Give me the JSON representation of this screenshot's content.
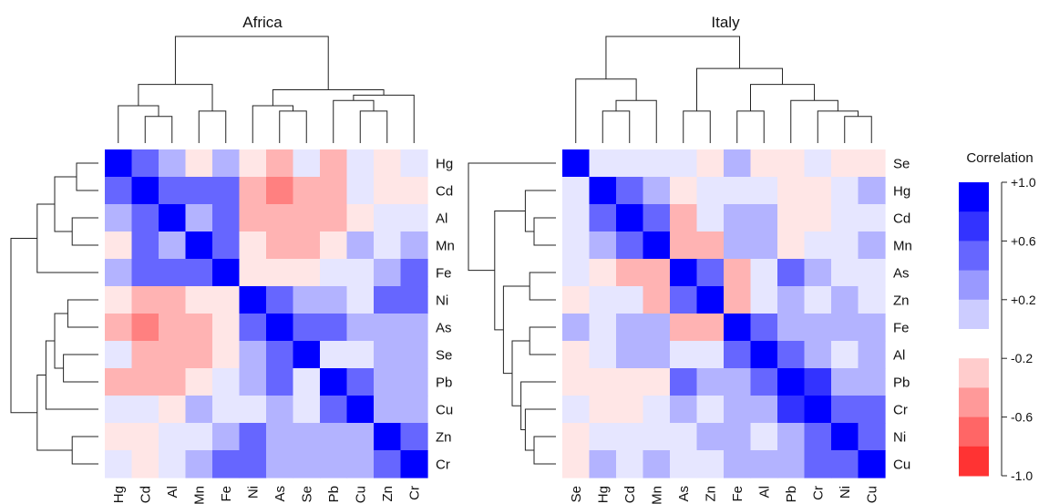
{
  "chart_data": [
    {
      "type": "heatmap",
      "title": "Africa",
      "rows": [
        "Hg",
        "Cd",
        "Al",
        "Mn",
        "Fe",
        "Ni",
        "As",
        "Se",
        "Pb",
        "Cu",
        "Zn",
        "Cr"
      ],
      "cols": [
        "Hg",
        "Cd",
        "Al",
        "Mn",
        "Fe",
        "Ni",
        "As",
        "Se",
        "Pb",
        "Cu",
        "Zn",
        "Cr"
      ],
      "values": [
        [
          1.0,
          0.6,
          0.3,
          -0.1,
          0.3,
          -0.1,
          -0.3,
          0.1,
          -0.3,
          0.1,
          -0.1,
          0.1
        ],
        [
          0.6,
          1.0,
          0.6,
          0.6,
          0.6,
          -0.3,
          -0.5,
          -0.3,
          -0.3,
          0.1,
          -0.1,
          -0.1
        ],
        [
          0.3,
          0.6,
          1.0,
          0.3,
          0.6,
          -0.3,
          -0.3,
          -0.3,
          -0.3,
          -0.1,
          0.1,
          0.1
        ],
        [
          -0.1,
          0.6,
          0.3,
          1.0,
          0.6,
          -0.1,
          -0.3,
          -0.3,
          -0.1,
          0.3,
          0.1,
          0.3
        ],
        [
          0.3,
          0.6,
          0.6,
          0.6,
          1.0,
          -0.1,
          -0.1,
          -0.1,
          0.1,
          0.1,
          0.3,
          0.6
        ],
        [
          -0.1,
          -0.3,
          -0.3,
          -0.1,
          -0.1,
          1.0,
          0.6,
          0.3,
          0.3,
          0.1,
          0.6,
          0.6
        ],
        [
          -0.3,
          -0.5,
          -0.3,
          -0.3,
          -0.1,
          0.6,
          1.0,
          0.6,
          0.6,
          0.3,
          0.3,
          0.3
        ],
        [
          0.1,
          -0.3,
          -0.3,
          -0.3,
          -0.1,
          0.3,
          0.6,
          1.0,
          0.1,
          0.1,
          0.3,
          0.3
        ],
        [
          -0.3,
          -0.3,
          -0.3,
          -0.1,
          0.1,
          0.3,
          0.6,
          0.1,
          1.0,
          0.6,
          0.3,
          0.3
        ],
        [
          0.1,
          0.1,
          -0.1,
          0.3,
          0.1,
          0.1,
          0.3,
          0.1,
          0.6,
          1.0,
          0.3,
          0.3
        ],
        [
          -0.1,
          -0.1,
          0.1,
          0.1,
          0.3,
          0.6,
          0.3,
          0.3,
          0.3,
          0.3,
          1.0,
          0.6
        ],
        [
          0.1,
          -0.1,
          0.1,
          0.3,
          0.6,
          0.6,
          0.3,
          0.3,
          0.3,
          0.3,
          0.6,
          1.0
        ]
      ],
      "row_dendrogram": {
        "merges": [
          [
            0,
            1,
            0.25
          ],
          [
            2,
            3,
            0.3
          ],
          [
            12,
            13,
            0.5
          ],
          [
            14,
            4,
            0.7
          ],
          [
            5,
            6,
            0.35
          ],
          [
            7,
            8,
            0.4
          ],
          [
            16,
            17,
            0.5
          ],
          [
            10,
            11,
            0.3
          ],
          [
            18,
            9,
            0.6
          ],
          [
            20,
            19,
            0.7
          ],
          [
            15,
            21,
            1.0
          ]
        ]
      },
      "col_dendrogram": {
        "merges": [
          [
            1,
            2,
            0.25
          ],
          [
            0,
            12,
            0.35
          ],
          [
            3,
            4,
            0.3
          ],
          [
            13,
            14,
            0.55
          ],
          [
            6,
            7,
            0.3
          ],
          [
            5,
            16,
            0.35
          ],
          [
            9,
            10,
            0.3
          ],
          [
            8,
            18,
            0.4
          ],
          [
            19,
            11,
            0.45
          ],
          [
            17,
            20,
            0.5
          ],
          [
            15,
            21,
            1.0
          ]
        ]
      }
    },
    {
      "type": "heatmap",
      "title": "Italy",
      "rows": [
        "Se",
        "Hg",
        "Cd",
        "Mn",
        "As",
        "Zn",
        "Fe",
        "Al",
        "Pb",
        "Cr",
        "Ni",
        "Cu"
      ],
      "cols": [
        "Se",
        "Hg",
        "Cd",
        "Mn",
        "As",
        "Zn",
        "Fe",
        "Al",
        "Pb",
        "Cr",
        "Ni",
        "Cu"
      ],
      "values": [
        [
          1.0,
          0.1,
          0.1,
          0.1,
          0.1,
          -0.1,
          0.3,
          -0.1,
          -0.1,
          0.1,
          -0.1,
          -0.1
        ],
        [
          0.1,
          1.0,
          0.6,
          0.3,
          -0.1,
          0.1,
          0.1,
          0.1,
          -0.1,
          -0.1,
          0.1,
          0.3
        ],
        [
          0.1,
          0.6,
          1.0,
          0.6,
          -0.3,
          0.1,
          0.3,
          0.3,
          -0.1,
          -0.1,
          0.1,
          0.1
        ],
        [
          0.1,
          0.3,
          0.6,
          1.0,
          -0.3,
          -0.3,
          0.3,
          0.3,
          -0.1,
          0.1,
          0.1,
          0.3
        ],
        [
          0.1,
          -0.1,
          -0.3,
          -0.3,
          1.0,
          0.6,
          -0.3,
          0.1,
          0.6,
          0.3,
          0.1,
          0.1
        ],
        [
          -0.1,
          0.1,
          0.1,
          -0.3,
          0.6,
          1.0,
          -0.3,
          0.1,
          0.3,
          0.1,
          0.3,
          0.1
        ],
        [
          0.3,
          0.1,
          0.3,
          0.3,
          -0.3,
          -0.3,
          1.0,
          0.6,
          0.3,
          0.3,
          0.3,
          0.3
        ],
        [
          -0.1,
          0.1,
          0.3,
          0.3,
          0.1,
          0.1,
          0.6,
          1.0,
          0.6,
          0.3,
          0.1,
          0.3
        ],
        [
          -0.1,
          -0.1,
          -0.1,
          -0.1,
          0.6,
          0.3,
          0.3,
          0.6,
          1.0,
          0.8,
          0.3,
          0.3
        ],
        [
          0.1,
          -0.1,
          -0.1,
          0.1,
          0.3,
          0.1,
          0.3,
          0.3,
          0.8,
          1.0,
          0.6,
          0.6
        ],
        [
          -0.1,
          0.1,
          0.1,
          0.1,
          0.1,
          0.3,
          0.3,
          0.1,
          0.3,
          0.6,
          1.0,
          0.6
        ],
        [
          -0.1,
          0.3,
          0.1,
          0.3,
          0.1,
          0.1,
          0.3,
          0.3,
          0.3,
          0.6,
          0.6,
          1.0
        ]
      ],
      "row_dendrogram": {
        "merges": [
          [
            2,
            3,
            0.25
          ],
          [
            1,
            12,
            0.35
          ],
          [
            4,
            5,
            0.3
          ],
          [
            6,
            7,
            0.3
          ],
          [
            10,
            11,
            0.25
          ],
          [
            9,
            16,
            0.35
          ],
          [
            8,
            17,
            0.4
          ],
          [
            15,
            18,
            0.5
          ],
          [
            14,
            19,
            0.6
          ],
          [
            13,
            20,
            0.7
          ],
          [
            0,
            21,
            1.0
          ]
        ]
      },
      "col_dendrogram": {
        "merges": [
          [
            1,
            2,
            0.3
          ],
          [
            12,
            3,
            0.4
          ],
          [
            0,
            13,
            0.6
          ],
          [
            4,
            5,
            0.3
          ],
          [
            6,
            7,
            0.3
          ],
          [
            10,
            11,
            0.25
          ],
          [
            9,
            17,
            0.3
          ],
          [
            8,
            18,
            0.4
          ],
          [
            16,
            19,
            0.55
          ],
          [
            15,
            20,
            0.7
          ],
          [
            14,
            21,
            1.0
          ]
        ]
      }
    }
  ],
  "legend": {
    "title": "Correlation",
    "ticks": [
      {
        "value": 1.0,
        "label": "+1.0"
      },
      {
        "value": 0.6,
        "label": "+0.6"
      },
      {
        "value": 0.2,
        "label": "+0.2"
      },
      {
        "value": -0.2,
        "label": "-0.2"
      },
      {
        "value": -0.6,
        "label": "-0.6"
      },
      {
        "value": -1.0,
        "label": "-1.0"
      }
    ],
    "bins": [
      1.0,
      0.8,
      0.6,
      0.4,
      0.2,
      0.0,
      -0.2,
      -0.4,
      -0.6,
      -0.8
    ],
    "colors": {
      "high": "#0000ff",
      "mid": "#ffffff",
      "low": "#ff0000"
    }
  }
}
